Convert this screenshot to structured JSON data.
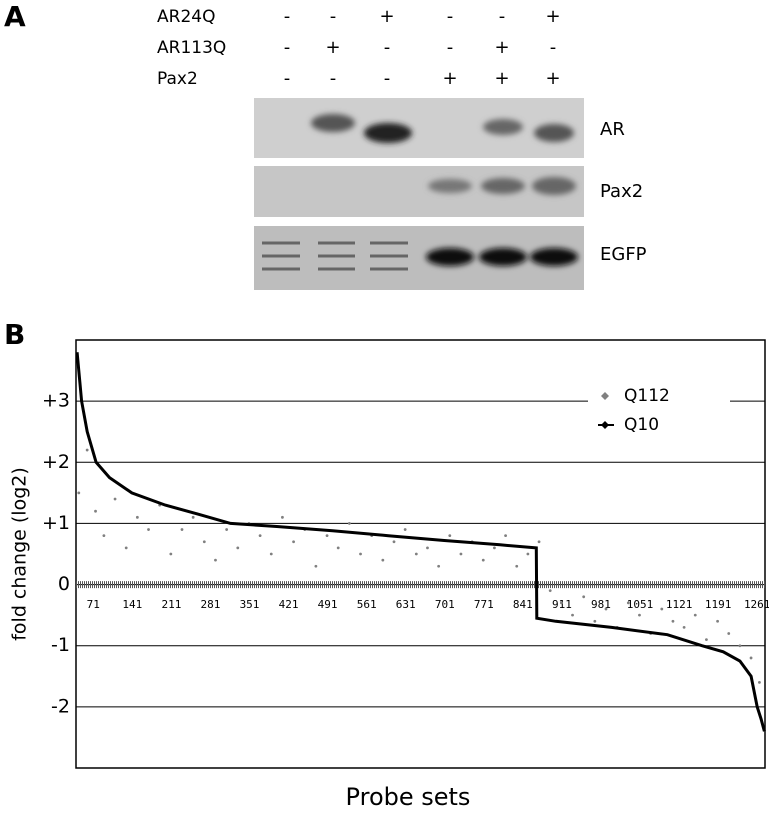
{
  "panel_a": {
    "label": "A",
    "conditions": [
      {
        "name": "AR24Q",
        "signs": [
          "-",
          "-",
          "+",
          "-",
          "-",
          "+"
        ]
      },
      {
        "name": "AR113Q",
        "signs": [
          "-",
          "+",
          "-",
          "-",
          "+",
          "-"
        ]
      },
      {
        "name": "Pax2",
        "signs": [
          "-",
          "-",
          "-",
          "+",
          "+",
          "+"
        ]
      }
    ],
    "blots": [
      "AR",
      "Pax2",
      "EGFP"
    ]
  },
  "panel_b": {
    "label": "B"
  },
  "chart_data": {
    "type": "line",
    "xlabel": "Probe sets",
    "ylabel": "fold change (log2)",
    "xlim": [
      40,
      1275
    ],
    "ylim": [
      -3,
      4
    ],
    "xticks": [
      71,
      141,
      211,
      281,
      351,
      421,
      491,
      561,
      631,
      701,
      771,
      841,
      911,
      981,
      1051,
      1121,
      1191,
      1261
    ],
    "yticks": [
      {
        "value": 3,
        "label": "+3"
      },
      {
        "value": 2,
        "label": "+2"
      },
      {
        "value": 1,
        "label": "+1"
      },
      0,
      -1,
      -2
    ],
    "grid": true,
    "legend": "upper right",
    "series": [
      {
        "name": "Q112",
        "color": "#808080",
        "mode": "markers",
        "x": [
          45,
          60,
          75,
          90,
          110,
          130,
          150,
          170,
          190,
          210,
          230,
          250,
          270,
          290,
          310,
          330,
          350,
          370,
          390,
          410,
          430,
          450,
          470,
          490,
          510,
          530,
          550,
          570,
          590,
          610,
          630,
          650,
          670,
          690,
          710,
          730,
          750,
          770,
          790,
          810,
          830,
          850,
          870,
          890,
          910,
          930,
          950,
          970,
          990,
          1010,
          1030,
          1050,
          1070,
          1090,
          1110,
          1130,
          1150,
          1170,
          1190,
          1210,
          1230,
          1250,
          1265
        ],
        "values": [
          1.5,
          2.2,
          1.2,
          0.8,
          1.4,
          0.6,
          1.1,
          0.9,
          1.3,
          0.5,
          0.9,
          1.1,
          0.7,
          0.4,
          0.9,
          0.6,
          1.0,
          0.8,
          0.5,
          1.1,
          0.7,
          0.9,
          0.3,
          0.8,
          0.6,
          1.0,
          0.5,
          0.8,
          0.4,
          0.7,
          0.9,
          0.5,
          0.6,
          0.3,
          0.8,
          0.5,
          0.7,
          0.4,
          0.6,
          0.8,
          0.3,
          0.5,
          0.7,
          -0.1,
          -0.3,
          -0.5,
          -0.2,
          -0.6,
          -0.4,
          -0.7,
          -0.3,
          -0.5,
          -0.8,
          -0.4,
          -0.6,
          -0.7,
          -0.5,
          -0.9,
          -0.6,
          -0.8,
          -1.0,
          -1.2,
          -1.6
        ]
      },
      {
        "name": "Q10",
        "color": "#000000",
        "mode": "line",
        "x": [
          42,
          50,
          60,
          76,
          100,
          140,
          200,
          260,
          317,
          400,
          500,
          600,
          700,
          800,
          865,
          866,
          900,
          1000,
          1100,
          1162,
          1200,
          1230,
          1250,
          1261,
          1268,
          1274
        ],
        "values": [
          3.8,
          3.0,
          2.5,
          2.0,
          1.75,
          1.5,
          1.3,
          1.15,
          1.0,
          0.95,
          0.88,
          0.8,
          0.72,
          0.65,
          0.6,
          -0.55,
          -0.6,
          -0.7,
          -0.82,
          -1.0,
          -1.1,
          -1.25,
          -1.5,
          -2.0,
          -2.2,
          -2.4
        ]
      }
    ]
  }
}
